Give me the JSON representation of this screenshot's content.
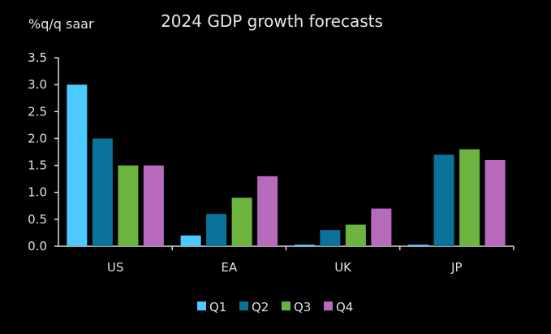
{
  "chart_data": {
    "type": "bar",
    "title": "2024 GDP growth forecasts",
    "ylabel": "%q/q saar",
    "xlabel": "",
    "categories": [
      "US",
      "EA",
      "UK",
      "JP"
    ],
    "series": [
      {
        "name": "Q1",
        "color": "#4cc9ff",
        "values": [
          3.0,
          0.2,
          0.03,
          0.03
        ]
      },
      {
        "name": "Q2",
        "color": "#0b7299",
        "values": [
          2.0,
          0.6,
          0.3,
          1.7
        ]
      },
      {
        "name": "Q3",
        "color": "#6db33f",
        "values": [
          1.5,
          0.9,
          0.4,
          1.8
        ]
      },
      {
        "name": "Q4",
        "color": "#b86bbd",
        "values": [
          1.5,
          1.3,
          0.7,
          1.6
        ]
      }
    ],
    "ylim": [
      0,
      3.5
    ],
    "yticks": [
      "0.0",
      "0.5",
      "1.0",
      "1.5",
      "2.0",
      "2.5",
      "3.0",
      "3.5"
    ],
    "grid": false,
    "legend_position": "bottom-center"
  }
}
